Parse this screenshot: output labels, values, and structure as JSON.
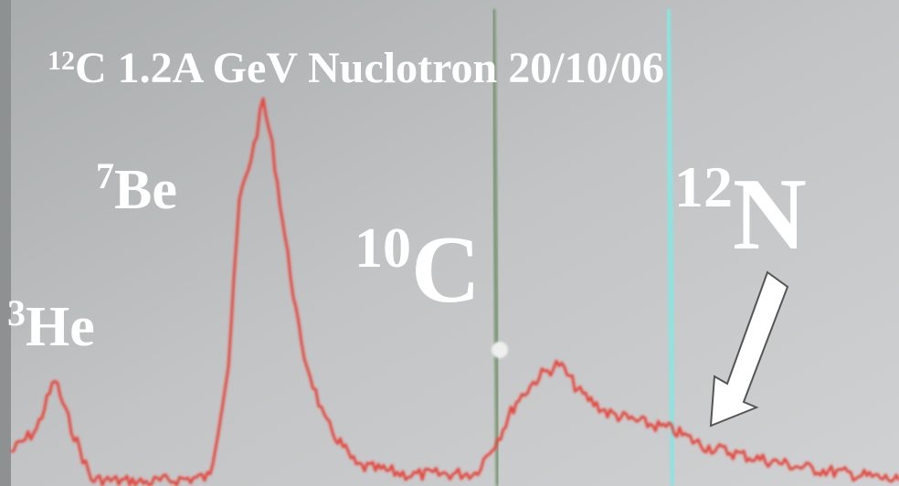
{
  "title": {
    "mass": "12",
    "text": "C 1.2A GeV Nuclotron 20/10/06"
  },
  "peaks": [
    {
      "mass": "3",
      "element": "He"
    },
    {
      "mass": "7",
      "element": "Be"
    },
    {
      "mass": "10",
      "element": "C"
    },
    {
      "mass": "12",
      "element": "N"
    }
  ]
}
